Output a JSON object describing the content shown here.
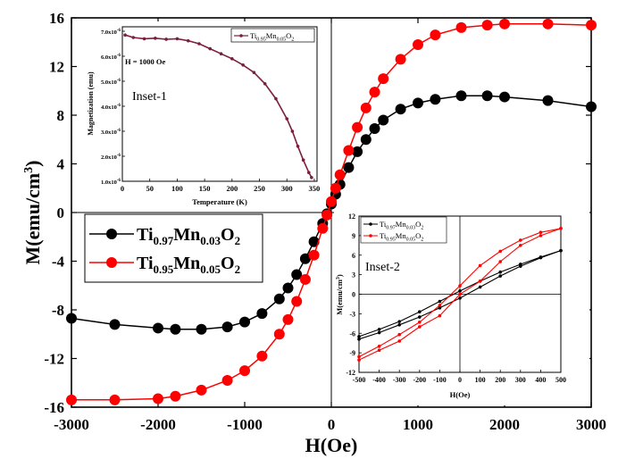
{
  "chart_data": [
    {
      "id": "main",
      "type": "scatter",
      "xlabel": "H(Oe)",
      "ylabel_main": "M(emu/cm",
      "ylabel_sup": "3",
      "ylabel_close": ")",
      "xlim": [
        -3000,
        3000
      ],
      "ylim": [
        -16,
        16
      ],
      "x_ticks": [
        -3000,
        -2000,
        -1000,
        0,
        1000,
        2000,
        3000
      ],
      "y_ticks": [
        -16,
        -12,
        -8,
        -4,
        0,
        4,
        8,
        12,
        16
      ],
      "legend_position": "left-middle",
      "series": [
        {
          "name": "Ti0.97Mn0.03O2",
          "name_parts": [
            "Ti",
            "0.97",
            "Mn",
            "0.03",
            "O",
            "2"
          ],
          "color": "#000000",
          "x": [
            -3000,
            -2500,
            -2000,
            -1800,
            -1500,
            -1200,
            -1000,
            -800,
            -600,
            -500,
            -400,
            -300,
            -200,
            -100,
            -50,
            0,
            50,
            100,
            200,
            300,
            400,
            500,
            600,
            800,
            1000,
            1200,
            1500,
            1800,
            2000,
            2500,
            3000
          ],
          "y": [
            -8.7,
            -9.2,
            -9.5,
            -9.6,
            -9.6,
            -9.4,
            -9.0,
            -8.3,
            -7.1,
            -6.2,
            -5.1,
            -3.8,
            -2.4,
            -0.9,
            -0.1,
            0.7,
            1.5,
            2.3,
            3.7,
            5.0,
            6.0,
            6.9,
            7.6,
            8.5,
            9.0,
            9.3,
            9.6,
            9.6,
            9.5,
            9.2,
            8.7
          ]
        },
        {
          "name": "Ti0.95Mn0.05O2",
          "name_parts": [
            "Ti",
            "0.95",
            "Mn",
            "0.05",
            "O",
            "2"
          ],
          "color": "#ff0000",
          "x": [
            -3000,
            -2500,
            -2000,
            -1800,
            -1500,
            -1200,
            -1000,
            -800,
            -600,
            -500,
            -400,
            -300,
            -200,
            -100,
            -50,
            0,
            50,
            100,
            200,
            300,
            400,
            500,
            600,
            800,
            1000,
            1200,
            1500,
            1800,
            2000,
            2500,
            3000
          ],
          "y": [
            -15.4,
            -15.4,
            -15.3,
            -15.1,
            -14.6,
            -13.8,
            -13.0,
            -11.8,
            -10.0,
            -8.8,
            -7.3,
            -5.5,
            -3.5,
            -1.3,
            -0.2,
            0.9,
            2.0,
            3.1,
            5.1,
            7.0,
            8.6,
            9.9,
            11.0,
            12.6,
            13.8,
            14.6,
            15.2,
            15.4,
            15.5,
            15.5,
            15.4
          ]
        }
      ]
    },
    {
      "id": "inset1",
      "type": "line",
      "label": "Inset-1",
      "annotation": "H = 1000 Oe",
      "xlabel": "Temperature (K)",
      "ylabel": "Magnetization (emu)",
      "xlim": [
        0,
        355
      ],
      "ylim": [
        1e-06,
        7e-06
      ],
      "x_ticks": [
        0,
        50,
        100,
        150,
        200,
        250,
        300,
        350
      ],
      "y_ticks": [
        1e-06,
        2e-06,
        3e-06,
        4e-06,
        5e-06,
        6e-06,
        7e-06
      ],
      "y_tick_labels": [
        {
          "mant": "1.0x10",
          "exp": "-6"
        },
        {
          "mant": "2.0x10",
          "exp": "-6"
        },
        {
          "mant": "3.0x10",
          "exp": "-6"
        },
        {
          "mant": "4.0x10",
          "exp": "-6"
        },
        {
          "mant": "5.0x10",
          "exp": "-6"
        },
        {
          "mant": "6.0x10",
          "exp": "-6"
        },
        {
          "mant": "7.0x10",
          "exp": "-6"
        }
      ],
      "series": [
        {
          "name": "Ti0.95Mn0.05O2",
          "name_parts": [
            "Ti",
            "0.95",
            "Mn",
            "0.05",
            "O",
            "2"
          ],
          "color": "#7a1f3d",
          "x": [
            5,
            20,
            40,
            60,
            80,
            100,
            120,
            140,
            160,
            180,
            200,
            220,
            240,
            260,
            280,
            300,
            310,
            320,
            330,
            340,
            345
          ],
          "y": [
            6.85e-06,
            6.75e-06,
            6.7e-06,
            6.72e-06,
            6.68e-06,
            6.7e-06,
            6.62e-06,
            6.5e-06,
            6.3e-06,
            6.1e-06,
            5.9e-06,
            5.65e-06,
            5.35e-06,
            4.9e-06,
            4.3e-06,
            3.5e-06,
            3e-06,
            2.4e-06,
            1.85e-06,
            1.35e-06,
            1.15e-06
          ]
        }
      ]
    },
    {
      "id": "inset2",
      "type": "line",
      "label": "Inset-2",
      "xlabel": "H(Oe)",
      "ylabel_main": "M(emu/cm",
      "ylabel_sup": "3",
      "ylabel_close": ")",
      "xlim": [
        -500,
        500
      ],
      "ylim": [
        -12,
        12
      ],
      "x_ticks": [
        -500,
        -400,
        -300,
        -200,
        -100,
        0,
        100,
        200,
        300,
        400,
        500
      ],
      "y_ticks": [
        -12,
        -9,
        -6,
        -3,
        0,
        3,
        6,
        9,
        12
      ],
      "series": [
        {
          "name": "Ti0.97Mn0.03O2",
          "name_parts": [
            "Ti",
            "0.97",
            "Mn",
            "0.03",
            "O",
            "2"
          ],
          "color": "#000000",
          "upper": {
            "x": [
              -500,
              -400,
              -300,
              -200,
              -100,
              0,
              100,
              200,
              300,
              400,
              500
            ],
            "y": [
              -6.5,
              -5.4,
              -4.2,
              -2.7,
              -1.1,
              0.5,
              2.0,
              3.4,
              4.6,
              5.7,
              6.7
            ]
          },
          "lower": {
            "x": [
              -500,
              -400,
              -300,
              -200,
              -100,
              0,
              100,
              200,
              300,
              400,
              500
            ],
            "y": [
              -6.9,
              -5.9,
              -4.7,
              -3.5,
              -2.1,
              -0.6,
              1.1,
              2.8,
              4.3,
              5.6,
              6.7
            ]
          }
        },
        {
          "name": "Ti0.95Mn0.05O2",
          "name_parts": [
            "Ti",
            "0.95",
            "Mn",
            "0.05",
            "O",
            "2"
          ],
          "color": "#ff0000",
          "upper": {
            "x": [
              -500,
              -400,
              -300,
              -200,
              -100,
              0,
              100,
              200,
              300,
              400,
              500
            ],
            "y": [
              -9.6,
              -8.0,
              -6.2,
              -4.3,
              -1.7,
              1.3,
              4.4,
              6.6,
              8.3,
              9.5,
              10.1
            ]
          },
          "lower": {
            "x": [
              -500,
              -400,
              -300,
              -200,
              -100,
              0,
              100,
              200,
              300,
              400,
              500
            ],
            "y": [
              -10.1,
              -8.6,
              -7.2,
              -5.0,
              -3.3,
              0.0,
              2.0,
              5.0,
              7.5,
              9.0,
              10.1
            ]
          }
        }
      ]
    }
  ]
}
